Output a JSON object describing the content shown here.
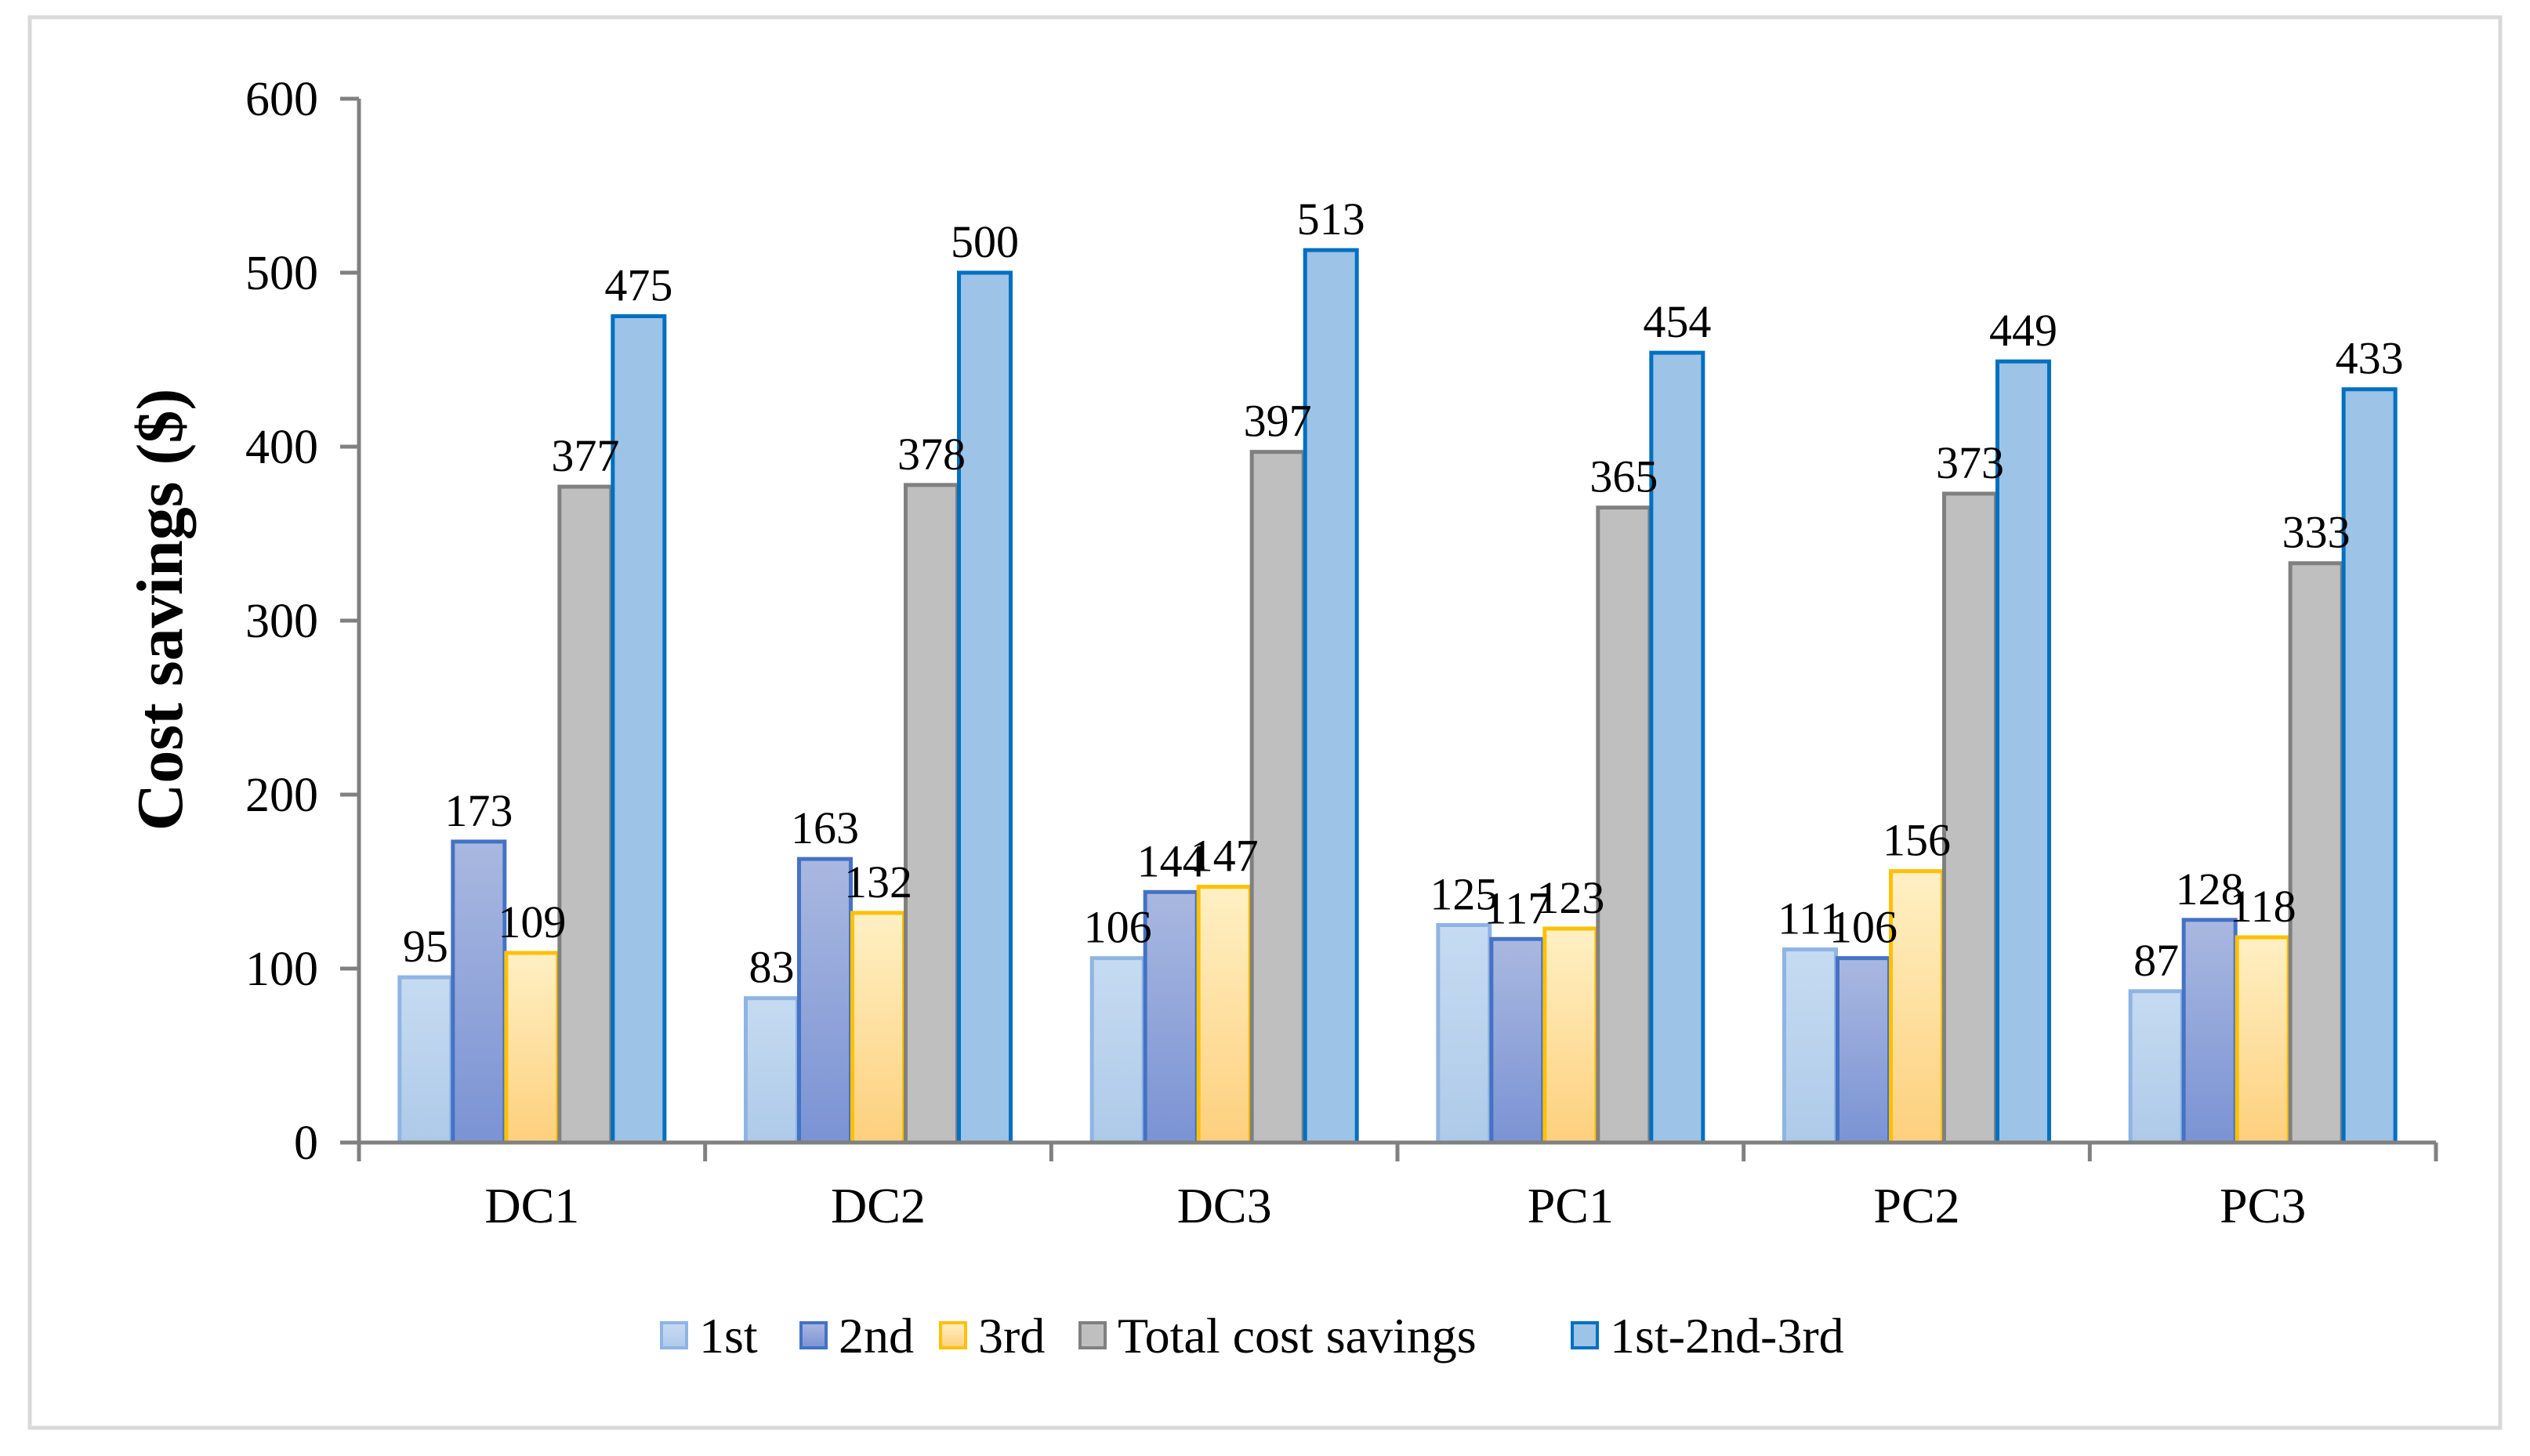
{
  "chart_data": {
    "type": "bar",
    "title": "",
    "xlabel": "",
    "ylabel": "Cost savings ($)",
    "ylim": [
      0,
      600
    ],
    "yticks": [
      0,
      100,
      200,
      300,
      400,
      500,
      600
    ],
    "grid": false,
    "legend_position": "bottom",
    "categories": [
      "DC1",
      "DC2",
      "DC3",
      "PC1",
      "PC2",
      "PC3"
    ],
    "series": [
      {
        "name": "1st",
        "values": [
          95,
          83,
          106,
          125,
          111,
          87
        ],
        "fill_top": "#c6dbf1",
        "fill_bottom": "#aecae9",
        "stroke": "#8eb4e3"
      },
      {
        "name": "2nd",
        "values": [
          173,
          163,
          144,
          117,
          106,
          128
        ],
        "fill_top": "#a9b8e0",
        "fill_bottom": "#7b93d4",
        "stroke": "#4472c4"
      },
      {
        "name": "3rd",
        "values": [
          109,
          132,
          147,
          123,
          156,
          118
        ],
        "fill_top": "#fff0c4",
        "fill_bottom": "#fdd07d",
        "stroke": "#ffc000"
      },
      {
        "name": "Total cost savings",
        "values": [
          377,
          378,
          397,
          365,
          373,
          333
        ],
        "fill_top": "#bfbfbf",
        "fill_bottom": "#bfbfbf",
        "stroke": "#808080"
      },
      {
        "name": "1st-2nd-3rd",
        "values": [
          475,
          500,
          513,
          454,
          449,
          433
        ],
        "fill_top": "#9dc3e6",
        "fill_bottom": "#9dc3e6",
        "stroke": "#0070c0"
      }
    ]
  }
}
